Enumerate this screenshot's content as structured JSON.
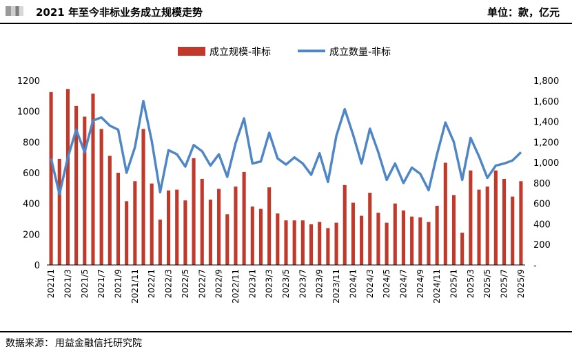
{
  "header": {
    "title": "2021 年至今非标业务成立规模走势",
    "unit": "单位：款，亿元"
  },
  "footer": {
    "source_label": "数据来源：",
    "source_text": "用益金融信托研究院"
  },
  "colors": {
    "bar": "#c0392b",
    "line": "#4f86c6",
    "axis": "#000000"
  },
  "chart_data": {
    "type": "bar+line",
    "legend_position": "top-center",
    "grid": false,
    "months": [
      "2021/1",
      "2021/2",
      "2021/3",
      "2021/4",
      "2021/5",
      "2021/6",
      "2021/7",
      "2021/8",
      "2021/9",
      "2021/10",
      "2021/11",
      "2021/12",
      "2022/1",
      "2022/2",
      "2022/3",
      "2022/4",
      "2022/5",
      "2022/6",
      "2022/7",
      "2022/8",
      "2022/9",
      "2022/10",
      "2022/11",
      "2022/12",
      "2023/1",
      "2023/2",
      "2023/3",
      "2023/4",
      "2023/5",
      "2023/6",
      "2023/7",
      "2023/8",
      "2023/9",
      "2023/10",
      "2023/11",
      "2023/12",
      "2024/1",
      "2024/2",
      "2024/3",
      "2024/4",
      "2024/5",
      "2024/6",
      "2024/7",
      "2024/8",
      "2024/9",
      "2024/10",
      "2024/11",
      "2024/12",
      "2025/1",
      "2025/2",
      "2025/3",
      "2025/4",
      "2025/5",
      "2025/6",
      "2025/7",
      "2025/8",
      "2025/9"
    ],
    "tick_labels": [
      "2021/1",
      "2021/3",
      "2021/5",
      "2021/7",
      "2021/9",
      "2021/11",
      "2022/1",
      "2022/3",
      "2022/5",
      "2022/7",
      "2022/9",
      "2022/11",
      "2023/1",
      "2023/3",
      "2023/5",
      "2023/7",
      "2023/9",
      "2023/11",
      "2024/1",
      "2024/3",
      "2024/5",
      "2024/7",
      "2024/9",
      "2024/11",
      "2025/1",
      "2025/3",
      "2025/5",
      "2025/7",
      "2025/9"
    ],
    "series": [
      {
        "name": "成立规模-非标",
        "type": "bar",
        "axis": "left",
        "values": [
          1125,
          690,
          1145,
          1035,
          965,
          1115,
          885,
          710,
          600,
          415,
          545,
          885,
          530,
          295,
          485,
          490,
          420,
          695,
          560,
          425,
          495,
          330,
          510,
          605,
          380,
          365,
          505,
          335,
          290,
          290,
          290,
          265,
          280,
          240,
          275,
          520,
          405,
          320,
          470,
          340,
          275,
          400,
          355,
          315,
          310,
          280,
          385,
          665,
          455,
          210,
          615,
          490,
          510,
          615,
          560,
          445,
          545
        ]
      },
      {
        "name": "成立数量-非标",
        "type": "line",
        "axis": "right",
        "values": [
          1040,
          690,
          1050,
          1320,
          1100,
          1410,
          1440,
          1360,
          1320,
          900,
          1150,
          1600,
          1210,
          710,
          1120,
          1080,
          960,
          1170,
          1110,
          970,
          1080,
          860,
          1190,
          1430,
          990,
          1010,
          1290,
          1040,
          980,
          1050,
          990,
          880,
          1090,
          810,
          1260,
          1520,
          1270,
          990,
          1330,
          1100,
          830,
          990,
          800,
          950,
          890,
          730,
          1080,
          1390,
          1200,
          830,
          1240,
          1060,
          850,
          970,
          990,
          1020,
          1100
        ]
      }
    ],
    "left_axis": {
      "min": 0,
      "max": 1200,
      "ticks": [
        "0",
        "200",
        "400",
        "600",
        "800",
        "1000",
        "1200"
      ]
    },
    "right_axis": {
      "min": 0,
      "max": 1800,
      "ticks": [
        "-",
        "200",
        "400",
        "600",
        "800",
        "1,000",
        "1,200",
        "1,400",
        "1,600",
        "1,800"
      ]
    }
  }
}
